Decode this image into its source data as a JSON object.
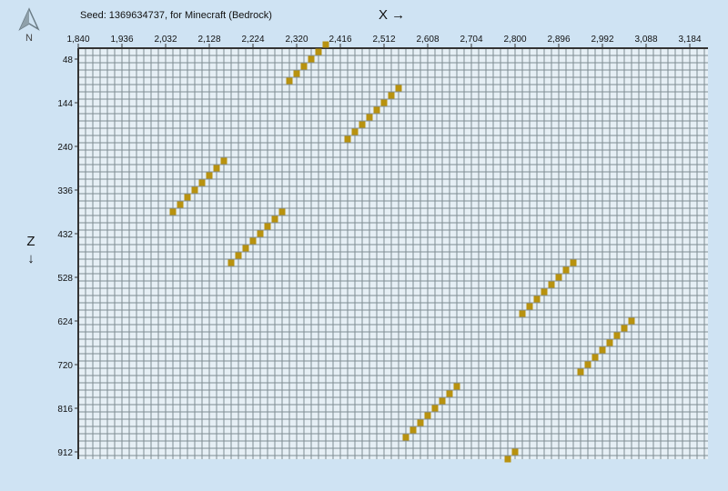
{
  "seed_label": "Seed: 1369634737, for Minecraft (Bedrock)",
  "compass_label": "N",
  "x_axis_label": "X →",
  "z_axis_label": [
    "Z",
    "↓"
  ],
  "x_ticks": [
    "1,840",
    "1,936",
    "2,032",
    "2,128",
    "2,224",
    "2,320",
    "2,416",
    "2,512",
    "2,608",
    "2,704",
    "2,800",
    "2,896",
    "2,992",
    "3,088",
    "3,184"
  ],
  "z_ticks": [
    "48",
    "144",
    "240",
    "336",
    "432",
    "528",
    "624",
    "720",
    "816",
    "912"
  ],
  "grid": {
    "x_min": 1840,
    "x_max": 3224,
    "z_min": 24,
    "z_max": 928,
    "cell": 16,
    "x_tick_step": 96,
    "z_tick_step": 96
  },
  "colors": {
    "background": "#cfe3f3",
    "grid_fill": "#e6eff5",
    "grid_line": "#7f8c92",
    "block": "#b8920f"
  },
  "structures": [
    {
      "x0": 2304,
      "z0": 96,
      "x1": 2384,
      "z1": 16,
      "count": 6
    },
    {
      "x0": 2432,
      "z0": 224,
      "x1": 2544,
      "z1": 112,
      "count": 8
    },
    {
      "x0": 2048,
      "z0": 384,
      "x1": 2160,
      "z1": 272,
      "count": 8
    },
    {
      "x0": 2176,
      "z0": 496,
      "x1": 2288,
      "z1": 384,
      "count": 8
    },
    {
      "x0": 2816,
      "z0": 608,
      "x1": 2928,
      "z1": 496,
      "count": 8
    },
    {
      "x0": 2944,
      "z0": 736,
      "x1": 3056,
      "z1": 624,
      "count": 8
    },
    {
      "x0": 2560,
      "z0": 880,
      "x1": 2672,
      "z1": 768,
      "count": 8
    },
    {
      "x0": 2784,
      "z0": 928,
      "x1": 2800,
      "z1": 912,
      "count": 2
    }
  ]
}
